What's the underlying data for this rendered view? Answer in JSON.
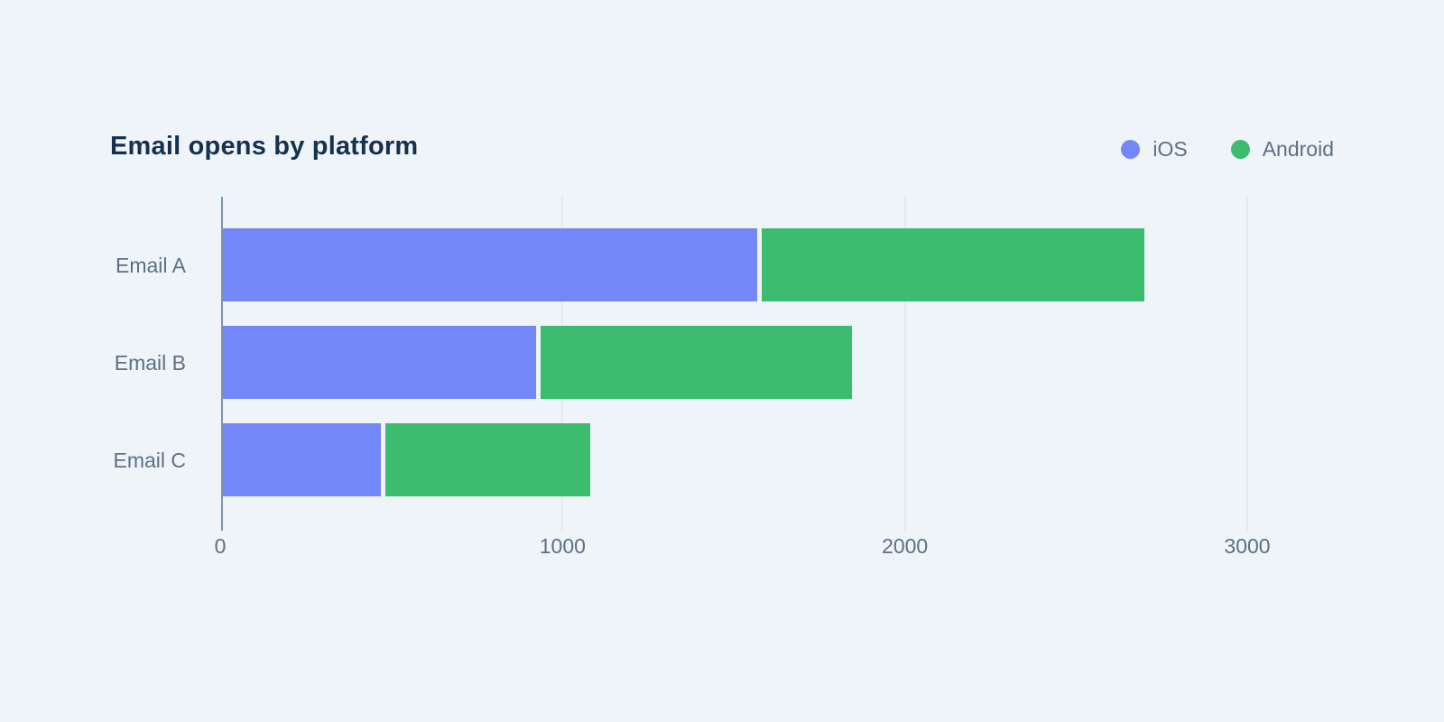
{
  "title": "Email opens by platform",
  "legend": {
    "items": [
      {
        "label": "iOS",
        "color": "#7387F8"
      },
      {
        "label": "Android",
        "color": "#3CBC6E"
      }
    ]
  },
  "colors": {
    "background": "#EFF4F8",
    "title_text": "#14314D",
    "axis_text": "#5D7083",
    "axis_line": "#7E94A7",
    "gridline": "#E3E9F2"
  },
  "chart_data": {
    "type": "bar",
    "orientation": "horizontal",
    "stacked": true,
    "title": "Email opens by platform",
    "categories": [
      "Email A",
      "Email B",
      "Email C"
    ],
    "series": [
      {
        "name": "iOS",
        "color": "#7387F8",
        "values": [
          1575,
          930,
          475
        ]
      },
      {
        "name": "Android",
        "color": "#3CBC6E",
        "values": [
          1125,
          915,
          605
        ]
      }
    ],
    "totals": [
      2700,
      1845,
      1080
    ],
    "x_ticks": [
      0,
      1000,
      2000,
      3000
    ],
    "xlim": [
      0,
      3000
    ],
    "xlabel": "",
    "ylabel": "",
    "grid": "vertical",
    "legend_position": "top-right"
  }
}
